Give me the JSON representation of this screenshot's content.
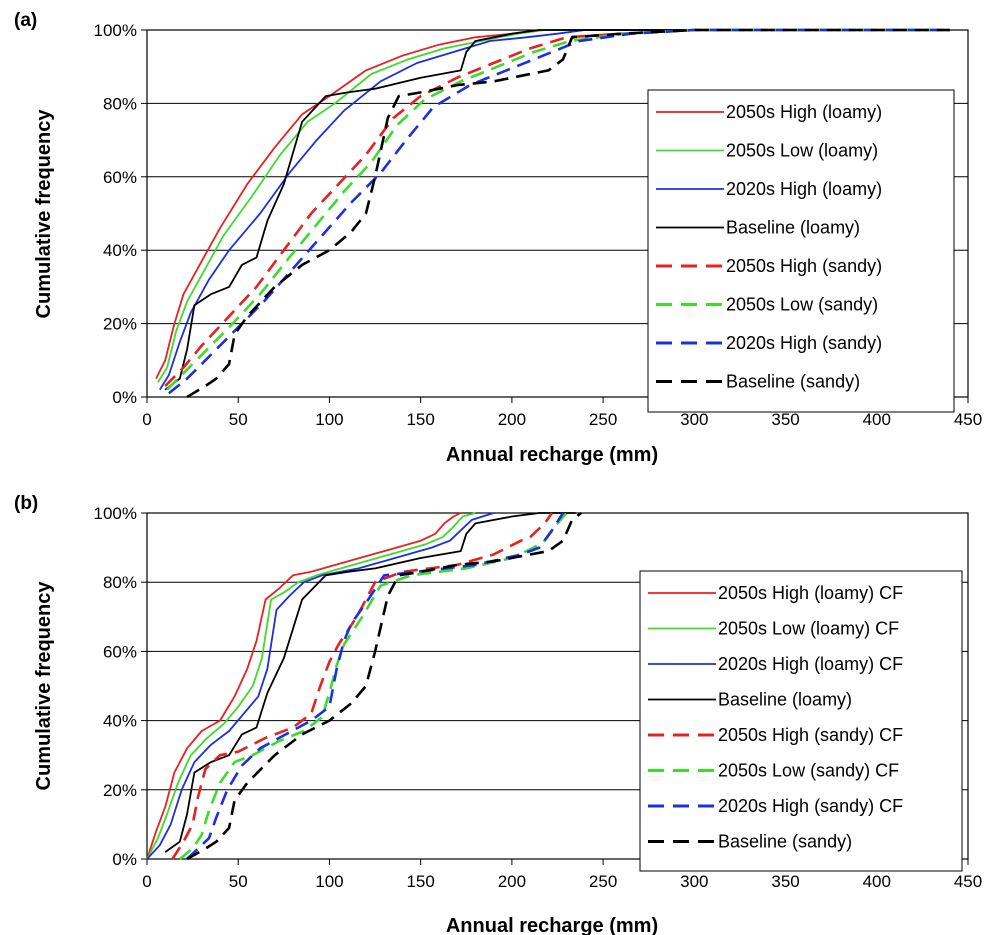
{
  "chart_data": [
    {
      "type": "line",
      "panel_label": "(a)",
      "xlabel": "Annual recharge (mm)",
      "ylabel": "Cumulative frequency",
      "xlim": [
        0,
        450
      ],
      "ylim": [
        0,
        100
      ],
      "x_ticks": [
        "0",
        "50",
        "100",
        "150",
        "200",
        "250",
        "300",
        "350",
        "400",
        "450"
      ],
      "y_ticks": [
        "0%",
        "20%",
        "40%",
        "60%",
        "80%",
        "100%"
      ],
      "grid": "horizontal",
      "legend_position": "right",
      "series": [
        {
          "name": "2050s High (loamy)",
          "color": "#e8201f",
          "dash": "solid",
          "x": [
            5,
            10,
            15,
            20,
            30,
            40,
            55,
            70,
            85,
            100,
            120,
            140,
            160,
            180,
            200,
            215,
            230,
            440
          ],
          "y": [
            5,
            10,
            20,
            28,
            37,
            46,
            58,
            68,
            77,
            82,
            89,
            93,
            96,
            98,
            99,
            100,
            100,
            100
          ]
        },
        {
          "name": "2050s Low (loamy)",
          "color": "#3cdc2a",
          "dash": "solid",
          "x": [
            6,
            11,
            16,
            22,
            32,
            42,
            58,
            73,
            88,
            103,
            123,
            143,
            163,
            183,
            203,
            218,
            232,
            440
          ],
          "y": [
            4,
            8,
            18,
            26,
            35,
            44,
            55,
            66,
            75,
            80,
            88,
            92,
            95,
            97,
            99,
            100,
            100,
            100
          ]
        },
        {
          "name": "2020s High (loamy)",
          "color": "#1b2fe0",
          "dash": "solid",
          "x": [
            7,
            12,
            18,
            24,
            34,
            45,
            62,
            78,
            93,
            108,
            128,
            148,
            168,
            188,
            208,
            225,
            240,
            440
          ],
          "y": [
            2,
            6,
            15,
            23,
            32,
            40,
            50,
            61,
            70,
            78,
            86,
            91,
            94,
            97,
            98,
            99,
            100,
            100
          ]
        },
        {
          "name": "Baseline (loamy)",
          "color": "#000000",
          "dash": "solid",
          "x": [
            10,
            18,
            22,
            26,
            35,
            45,
            52,
            60,
            66,
            75,
            85,
            98,
            110,
            125,
            150,
            172,
            175,
            180,
            200,
            215,
            230,
            440
          ],
          "y": [
            2,
            5,
            13,
            25,
            28,
            30,
            36,
            38,
            48,
            58,
            75,
            82,
            83,
            84,
            87,
            89,
            94,
            97,
            99,
            100,
            100,
            100
          ]
        },
        {
          "name": "2050s High (sandy)",
          "color": "#e8201f",
          "dash": "dash",
          "x": [
            10,
            20,
            30,
            45,
            60,
            75,
            90,
            105,
            120,
            135,
            150,
            170,
            190,
            210,
            230,
            260,
            300,
            440
          ],
          "y": [
            3,
            8,
            14,
            22,
            30,
            40,
            50,
            58,
            66,
            76,
            82,
            87,
            91,
            95,
            98,
            99,
            100,
            100
          ]
        },
        {
          "name": "2050s Low (sandy)",
          "color": "#3cdc2a",
          "dash": "dash",
          "x": [
            11,
            21,
            31,
            47,
            62,
            78,
            93,
            108,
            123,
            137,
            152,
            172,
            192,
            212,
            232,
            262,
            300,
            440
          ],
          "y": [
            2,
            7,
            12,
            20,
            28,
            38,
            47,
            56,
            64,
            74,
            81,
            86,
            90,
            94,
            97,
            99,
            100,
            100
          ]
        },
        {
          "name": "2020s High (sandy)",
          "color": "#1b2fe0",
          "dash": "dash",
          "x": [
            12,
            22,
            32,
            48,
            64,
            80,
            96,
            112,
            128,
            142,
            157,
            177,
            197,
            217,
            237,
            265,
            300,
            440
          ],
          "y": [
            1,
            5,
            10,
            18,
            26,
            35,
            44,
            53,
            61,
            70,
            79,
            85,
            89,
            93,
            97,
            99,
            100,
            100
          ]
        },
        {
          "name": "Baseline (sandy)",
          "color": "#000000",
          "dash": "dash",
          "x": [
            22,
            32,
            38,
            45,
            48,
            55,
            70,
            85,
            100,
            112,
            120,
            125,
            132,
            138,
            150,
            170,
            190,
            210,
            220,
            228,
            233,
            260,
            300,
            440
          ],
          "y": [
            0,
            3,
            5,
            9,
            17,
            22,
            30,
            36,
            40,
            45,
            50,
            60,
            76,
            82,
            83,
            85,
            86,
            88,
            89,
            92,
            98,
            99,
            100,
            100
          ]
        }
      ]
    },
    {
      "type": "line",
      "panel_label": "(b)",
      "xlabel": "Annual recharge (mm)",
      "ylabel": "Cumulative frequency",
      "xlim": [
        0,
        450
      ],
      "ylim": [
        0,
        100
      ],
      "x_ticks": [
        "0",
        "50",
        "100",
        "150",
        "200",
        "250",
        "300",
        "350",
        "400",
        "450"
      ],
      "y_ticks": [
        "0%",
        "20%",
        "40%",
        "60%",
        "80%",
        "100%"
      ],
      "grid": "horizontal",
      "legend_position": "right",
      "series": [
        {
          "name": "2050s High (loamy) CF",
          "color": "#e8201f",
          "dash": "solid",
          "x": [
            0,
            5,
            10,
            15,
            22,
            30,
            40,
            48,
            55,
            60,
            65,
            72,
            80,
            90,
            110,
            130,
            150,
            158,
            163,
            168,
            172
          ],
          "y": [
            0,
            8,
            15,
            25,
            32,
            37,
            40,
            47,
            55,
            63,
            75,
            78,
            82,
            83,
            86,
            89,
            92,
            94,
            97,
            99,
            100
          ]
        },
        {
          "name": "2050s Low (loamy) CF",
          "color": "#3cdc2a",
          "dash": "solid",
          "x": [
            0,
            6,
            11,
            17,
            24,
            33,
            42,
            50,
            58,
            63,
            68,
            75,
            83,
            93,
            113,
            133,
            153,
            162,
            168,
            173,
            180
          ],
          "y": [
            0,
            6,
            13,
            22,
            30,
            35,
            39,
            44,
            50,
            58,
            75,
            77,
            80,
            82,
            85,
            88,
            91,
            93,
            96,
            99,
            100
          ]
        },
        {
          "name": "2020s High (loamy) CF",
          "color": "#1b2fe0",
          "dash": "solid",
          "x": [
            0,
            7,
            13,
            19,
            26,
            35,
            45,
            53,
            61,
            66,
            71,
            78,
            86,
            96,
            116,
            136,
            156,
            166,
            172,
            178,
            190
          ],
          "y": [
            0,
            4,
            10,
            20,
            28,
            33,
            37,
            42,
            47,
            55,
            72,
            76,
            80,
            82,
            84,
            87,
            90,
            92,
            95,
            98,
            100
          ]
        },
        {
          "name": "Baseline (loamy)",
          "color": "#000000",
          "dash": "solid",
          "x": [
            10,
            18,
            22,
            26,
            35,
            45,
            52,
            60,
            66,
            75,
            85,
            98,
            110,
            125,
            150,
            172,
            175,
            180,
            200,
            215,
            235
          ],
          "y": [
            2,
            5,
            13,
            25,
            28,
            30,
            36,
            38,
            48,
            58,
            75,
            82,
            83,
            84,
            87,
            89,
            94,
            97,
            99,
            100,
            100
          ]
        },
        {
          "name": "2050s High (sandy) CF",
          "color": "#e8201f",
          "dash": "dash",
          "x": [
            14,
            20,
            25,
            28,
            32,
            40,
            50,
            65,
            80,
            90,
            95,
            100,
            105,
            115,
            125,
            140,
            170,
            190,
            205,
            210,
            218,
            222
          ],
          "y": [
            0,
            5,
            10,
            18,
            26,
            30,
            31,
            35,
            38,
            42,
            50,
            57,
            62,
            70,
            80,
            83,
            85,
            88,
            92,
            93,
            97,
            100
          ]
        },
        {
          "name": "2050s Low (sandy) CF",
          "color": "#3cdc2a",
          "dash": "dash",
          "x": [
            18,
            25,
            30,
            34,
            40,
            48,
            58,
            72,
            86,
            96,
            100,
            104,
            108,
            118,
            128,
            145,
            175,
            200,
            212,
            218,
            225,
            230
          ],
          "y": [
            0,
            3,
            7,
            14,
            22,
            28,
            30,
            34,
            37,
            41,
            48,
            56,
            62,
            70,
            79,
            82,
            84,
            87,
            90,
            92,
            97,
            100
          ]
        },
        {
          "name": "2020s High (sandy) CF",
          "color": "#1b2fe0",
          "dash": "dash",
          "x": [
            22,
            28,
            34,
            38,
            44,
            52,
            62,
            76,
            90,
            100,
            104,
            108,
            112,
            120,
            130,
            148,
            180,
            205,
            215,
            222,
            228
          ],
          "y": [
            0,
            3,
            6,
            12,
            20,
            27,
            32,
            36,
            40,
            44,
            55,
            63,
            68,
            74,
            82,
            83,
            85,
            88,
            90,
            95,
            100
          ]
        },
        {
          "name": "Baseline (sandy)",
          "color": "#000000",
          "dash": "dash",
          "x": [
            22,
            32,
            38,
            45,
            48,
            55,
            70,
            85,
            100,
            112,
            120,
            125,
            132,
            138,
            150,
            170,
            190,
            210,
            220,
            228,
            233,
            238
          ],
          "y": [
            0,
            3,
            5,
            9,
            17,
            22,
            30,
            36,
            40,
            45,
            50,
            60,
            76,
            82,
            83,
            85,
            86,
            88,
            89,
            92,
            98,
            100
          ]
        }
      ]
    }
  ]
}
